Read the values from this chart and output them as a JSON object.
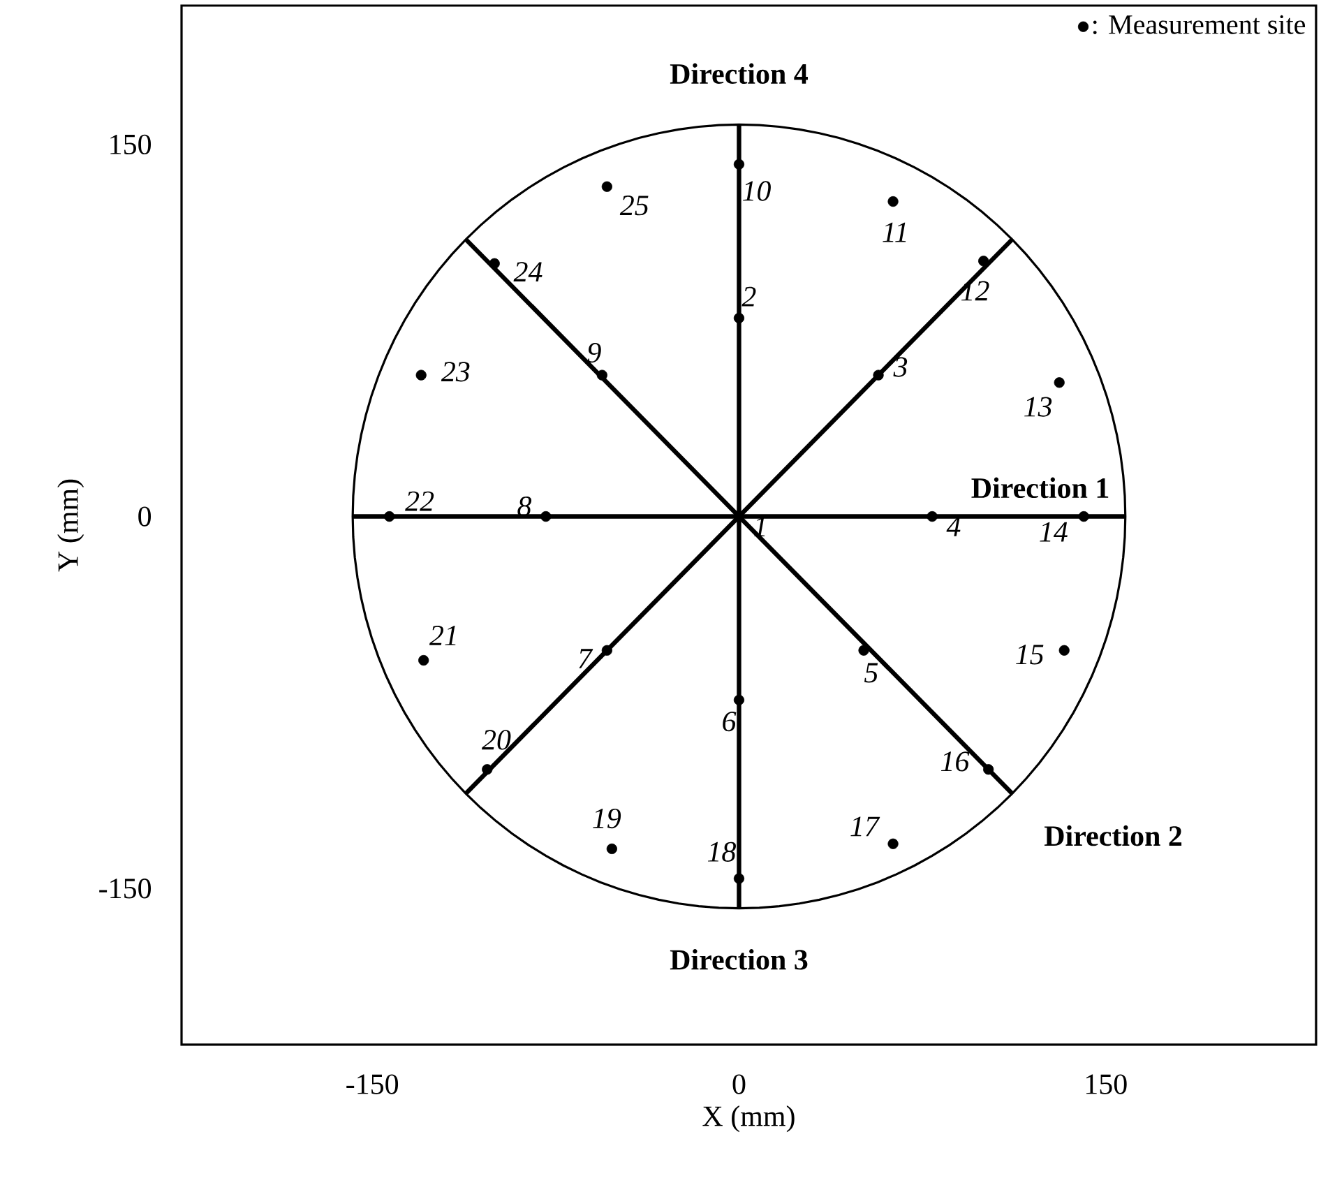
{
  "chart_data": {
    "type": "scatter",
    "xlabel": "X (mm)",
    "ylabel": "Y (mm)",
    "xlim": [
      -228,
      236
    ],
    "ylim": [
      -213,
      206
    ],
    "xticks": [
      -150,
      0,
      150
    ],
    "yticks": [
      -150,
      0,
      150
    ],
    "legend": "top right",
    "grid": false,
    "series": [
      {
        "name": ": Measurement site",
        "marker": "circle",
        "color": "#000000",
        "x": [
          0,
          0,
          57,
          79,
          51,
          0,
          -54,
          -79,
          -56,
          0,
          63,
          100,
          131,
          141,
          133,
          102,
          63,
          0,
          -52,
          -103,
          -129,
          -143,
          -130,
          -100,
          -54
        ],
        "values": [
          0,
          80,
          57,
          0,
          -54,
          -74,
          -54,
          0,
          57,
          142,
          127,
          103,
          54,
          0,
          -54,
          -102,
          -132,
          -146,
          -134,
          -102,
          -58,
          0,
          57,
          102,
          133
        ]
      },
      {
        "type": "line",
        "marker": "none",
        "color": "#000000",
        "x": [
          -158,
          158
        ],
        "values": [
          0,
          0
        ]
      },
      {
        "type": "line",
        "marker": "none",
        "color": "#000000",
        "x": [
          0,
          0
        ],
        "values": [
          158,
          -158
        ]
      },
      {
        "type": "line",
        "marker": "none",
        "color": "#000000",
        "x": [
          -111.7,
          111.7
        ],
        "values": [
          -111.7,
          111.7
        ]
      },
      {
        "type": "line",
        "marker": "none",
        "color": "#000000",
        "x": [
          -111.7,
          111.7
        ],
        "values": [
          111.7,
          -111.7
        ]
      }
    ],
    "annotations": [
      {
        "text": "1",
        "x": 0,
        "y": 0
      },
      {
        "text": "2",
        "x": 0,
        "y": 80
      },
      {
        "text": "3",
        "x": 57,
        "y": 57
      },
      {
        "text": "4",
        "x": 79,
        "y": 0
      },
      {
        "text": "5",
        "x": 51,
        "y": -54
      },
      {
        "text": "6",
        "x": 0,
        "y": -74
      },
      {
        "text": "7",
        "x": -54,
        "y": -54
      },
      {
        "text": "8",
        "x": -79,
        "y": 0
      },
      {
        "text": "9",
        "x": -56,
        "y": 57
      },
      {
        "text": "10",
        "x": 0,
        "y": 142
      },
      {
        "text": "11",
        "x": 63,
        "y": 127
      },
      {
        "text": "12",
        "x": 100,
        "y": 103
      },
      {
        "text": "13",
        "x": 131,
        "y": 54
      },
      {
        "text": "14",
        "x": 141,
        "y": 0
      },
      {
        "text": "15",
        "x": 133,
        "y": -54
      },
      {
        "text": "16",
        "x": 102,
        "y": -102
      },
      {
        "text": "17",
        "x": 63,
        "y": -132
      },
      {
        "text": "18",
        "x": 0,
        "y": -146
      },
      {
        "text": "19",
        "x": -52,
        "y": -134
      },
      {
        "text": "20",
        "x": -103,
        "y": -102
      },
      {
        "text": "21",
        "x": -129,
        "y": -58
      },
      {
        "text": "22",
        "x": -143,
        "y": 0
      },
      {
        "text": "23",
        "x": -130,
        "y": 57
      },
      {
        "text": "24",
        "x": -100,
        "y": 102
      },
      {
        "text": "25",
        "x": -54,
        "y": 133
      },
      {
        "text": "Direction 1",
        "x": 158,
        "y": 0
      },
      {
        "text": "Direction 2",
        "x": 111.7,
        "y": -111.7
      },
      {
        "text": "Direction 3",
        "x": 0,
        "y": -158
      },
      {
        "text": "Direction 4",
        "x": 0,
        "y": 158
      }
    ]
  }
}
